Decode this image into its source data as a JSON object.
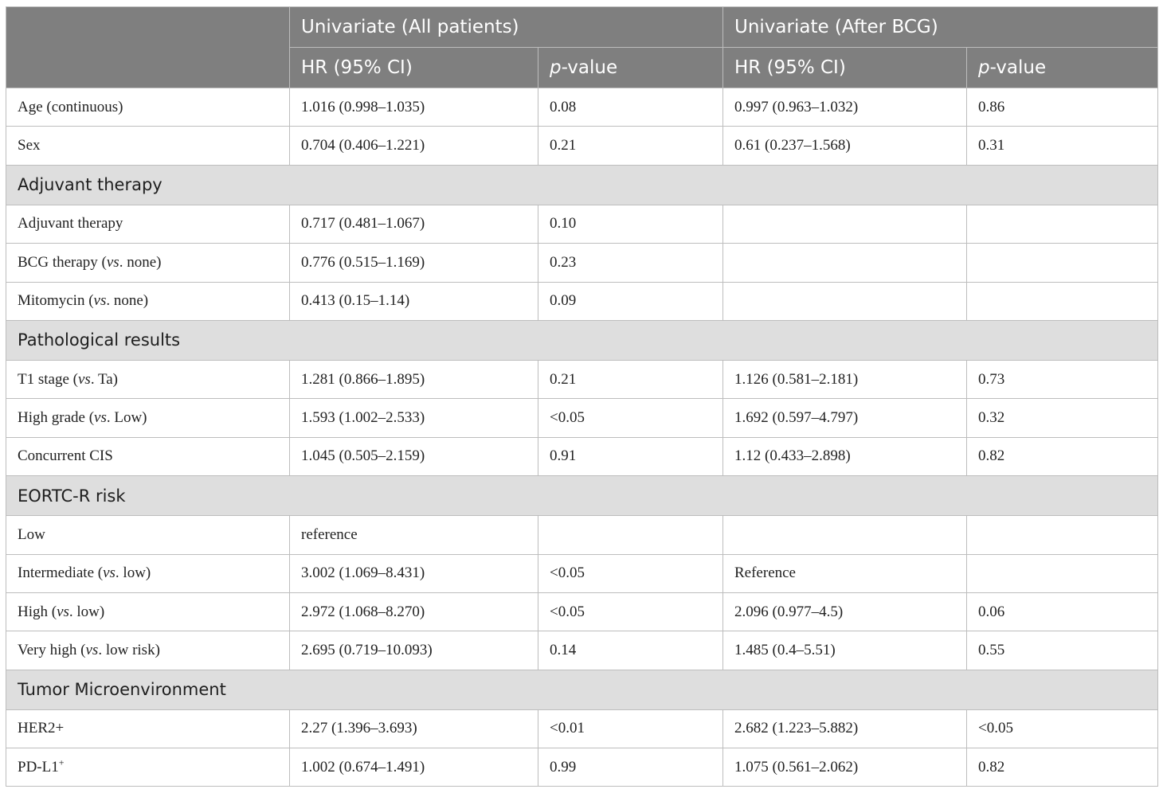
{
  "header": {
    "group_all": "Univariate (All patients)",
    "group_bcg": "Univariate (After BCG)",
    "hr_label": "HR (95% CI)",
    "p_prefix": "p",
    "p_suffix": "-value"
  },
  "rows": {
    "age": {
      "label": "Age (continuous)",
      "hr_all": "1.016 (0.998–1.035)",
      "p_all": "0.08",
      "hr_bcg": "0.997 (0.963–1.032)",
      "p_bcg": "0.86"
    },
    "sex": {
      "label": "Sex",
      "hr_all": "0.704 (0.406–1.221)",
      "p_all": "0.21",
      "hr_bcg": "0.61 (0.237–1.568)",
      "p_bcg": "0.31"
    },
    "sec_adjuvant": "Adjuvant therapy",
    "adjuvant": {
      "label": "Adjuvant therapy",
      "hr_all": "0.717 (0.481–1.067)",
      "p_all": "0.10",
      "hr_bcg": "",
      "p_bcg": ""
    },
    "bcg": {
      "label_pre": "BCG therapy (",
      "label_it": "vs",
      "label_post": ". none)",
      "hr_all": "0.776 (0.515–1.169)",
      "p_all": "0.23",
      "hr_bcg": "",
      "p_bcg": ""
    },
    "mito": {
      "label_pre": "Mitomycin (",
      "label_it": "vs",
      "label_post": ". none)",
      "hr_all": "0.413 (0.15–1.14)",
      "p_all": "0.09",
      "hr_bcg": "",
      "p_bcg": ""
    },
    "sec_path": "Pathological results",
    "t1": {
      "label_pre": "T1 stage (",
      "label_it": "vs",
      "label_post": ". Ta)",
      "hr_all": "1.281 (0.866–1.895)",
      "p_all": "0.21",
      "hr_bcg": "1.126 (0.581–2.181)",
      "p_bcg": "0.73"
    },
    "hg": {
      "label_pre": "High grade (",
      "label_it": "vs",
      "label_post": ". Low)",
      "hr_all": "1.593 (1.002–2.533)",
      "p_all": "<0.05",
      "hr_bcg": "1.692 (0.597–4.797)",
      "p_bcg": "0.32"
    },
    "cis": {
      "label": "Concurrent CIS",
      "hr_all": "1.045 (0.505–2.159)",
      "p_all": "0.91",
      "hr_bcg": "1.12 (0.433–2.898)",
      "p_bcg": "0.82"
    },
    "sec_eortc": "EORTC-R risk",
    "low": {
      "label": "Low",
      "hr_all": "reference",
      "p_all": "",
      "hr_bcg": "",
      "p_bcg": ""
    },
    "inter": {
      "label_pre": "Intermediate (",
      "label_it": "vs",
      "label_post": ". low)",
      "hr_all": "3.002 (1.069–8.431)",
      "p_all": "<0.05",
      "hr_bcg": "Reference",
      "p_bcg": ""
    },
    "high": {
      "label_pre": "High (",
      "label_it": "vs",
      "label_post": ". low)",
      "hr_all": "2.972 (1.068–8.270)",
      "p_all": "<0.05",
      "hr_bcg": "2.096 (0.977–4.5)",
      "p_bcg": "0.06"
    },
    "vhigh": {
      "label_pre": "Very high (",
      "label_it": "vs",
      "label_post": ". low risk)",
      "hr_all": "2.695 (0.719–10.093)",
      "p_all": "0.14",
      "hr_bcg": "1.485 (0.4–5.51)",
      "p_bcg": "0.55"
    },
    "sec_tme": "Tumor Microenvironment",
    "her2": {
      "label": "HER2+",
      "hr_all": "2.27 (1.396–3.693)",
      "p_all": "<0.01",
      "hr_bcg": "2.682 (1.223–5.882)",
      "p_bcg": "<0.05"
    },
    "pdl1": {
      "label": "PD-L1",
      "label_sup": "+",
      "hr_all": "1.002 (0.674–1.491)",
      "p_all": "0.99",
      "hr_bcg": "1.075 (0.561–2.062)",
      "p_bcg": "0.82"
    }
  }
}
